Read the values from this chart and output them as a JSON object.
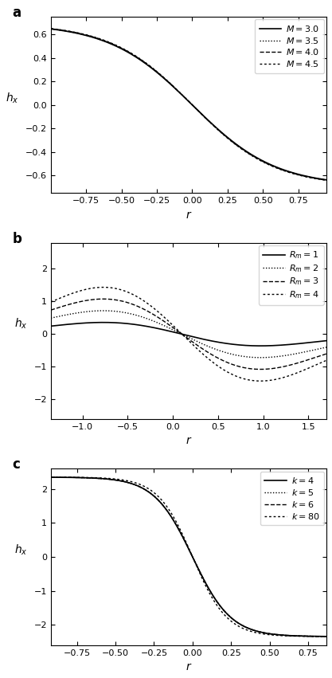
{
  "panel_a": {
    "label": "a",
    "xlabel": "r",
    "ylabel": "h_x",
    "xlim": [
      -1.0,
      0.95
    ],
    "ylim": [
      -0.75,
      0.75
    ],
    "xticks": [
      -0.75,
      -0.5,
      -0.25,
      0,
      0.25,
      0.5,
      0.75
    ],
    "yticks": [
      -0.6,
      -0.4,
      -0.2,
      0,
      0.2,
      0.4,
      0.6
    ],
    "curves": [
      {
        "label": "M = 3.0",
        "style": "solid",
        "lw": 1.2,
        "param": 3.0
      },
      {
        "label": "M = 3.5",
        "style": "densely_dotted",
        "lw": 1.0,
        "param": 3.5
      },
      {
        "label": "M = 4.0",
        "style": "dashed",
        "lw": 1.0,
        "param": 4.0
      },
      {
        "label": "M = 4.5",
        "style": "dotted",
        "lw": 1.0,
        "param": 4.5
      }
    ],
    "color": "black",
    "legend_labels": [
      "$M = 3.0$",
      "$M = 3.5$",
      "$M = 4.0$",
      "$M = 4.5$"
    ]
  },
  "panel_b": {
    "label": "b",
    "xlabel": "r",
    "ylabel": "h_x",
    "xlim": [
      -1.35,
      1.7
    ],
    "ylim": [
      -2.6,
      2.8
    ],
    "xticks": [
      -1,
      -0.5,
      0,
      0.5,
      1,
      1.5
    ],
    "yticks": [
      -2,
      -1,
      0,
      1,
      2
    ],
    "curves": [
      {
        "label": "R_m = 1",
        "style": "solid",
        "lw": 1.2,
        "param": 1
      },
      {
        "label": "R_m = 2",
        "style": "densely_dotted",
        "lw": 1.0,
        "param": 2
      },
      {
        "label": "R_m = 3",
        "style": "dashed",
        "lw": 1.0,
        "param": 3
      },
      {
        "label": "R_m = 4",
        "style": "dotted",
        "lw": 1.0,
        "param": 4
      }
    ],
    "color": "black",
    "legend_labels": [
      "$R_m = 1$",
      "$R_m = 2$",
      "$R_m = 3$",
      "$R_m = 4$"
    ]
  },
  "panel_c": {
    "label": "c",
    "xlabel": "r",
    "ylabel": "h_x",
    "xlim": [
      -0.92,
      0.87
    ],
    "ylim": [
      -2.6,
      2.6
    ],
    "xticks": [
      -0.75,
      -0.5,
      -0.25,
      0,
      0.25,
      0.5,
      0.75
    ],
    "yticks": [
      -2,
      -1,
      0,
      1,
      2
    ],
    "curves": [
      {
        "label": "k = 4",
        "style": "solid",
        "lw": 1.2,
        "param": 4
      },
      {
        "label": "k = 5",
        "style": "densely_dotted",
        "lw": 1.0,
        "param": 5
      },
      {
        "label": "k = 6",
        "style": "dashed",
        "lw": 1.0,
        "param": 6
      },
      {
        "label": "k = 80",
        "style": "dotted",
        "lw": 1.0,
        "param": 80
      }
    ],
    "color": "black",
    "legend_labels": [
      "$k = 4$",
      "$k = 5$",
      "$k = 6$",
      "$k = 80$"
    ]
  }
}
